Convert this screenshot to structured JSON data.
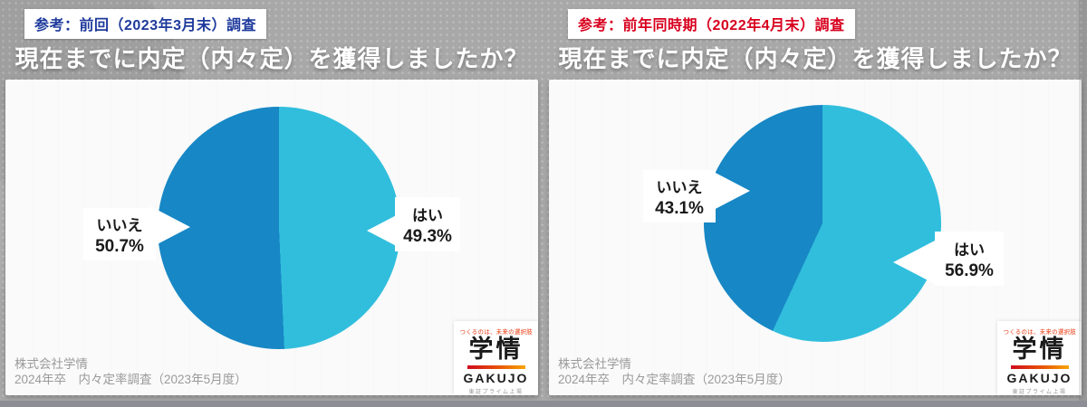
{
  "page": {
    "background": "#a8a8a8",
    "color_yes": "#31bedd",
    "color_no": "#1787c5"
  },
  "panels": [
    {
      "badge": "参考：前回（2023年3月末）調査",
      "badge_color": "#1e3a9c",
      "title": "現在までに内定（内々定）を獲得しましたか？",
      "labels": {
        "yes": "はい",
        "no": "いいえ"
      },
      "values": {
        "yes": "49.3%",
        "no": "50.7%"
      },
      "source_line1": "株式会社学情",
      "source_line2": "2024年卒　内々定率調査（2023年5月度）"
    },
    {
      "badge": "参考：前年同時期（2022年4月末）調査",
      "badge_color": "#d8001e",
      "title": "現在までに内定（内々定）を獲得しましたか？",
      "labels": {
        "yes": "はい",
        "no": "いいえ"
      },
      "values": {
        "yes": "56.9%",
        "no": "43.1%"
      },
      "source_line1": "株式会社学情",
      "source_line2": "2024年卒　内々定率調査（2023年5月度）"
    }
  ],
  "logo": {
    "slogan": "つくるのは、未来の選択肢",
    "kanji": "学情",
    "name": "GAKUJO",
    "sub": "東証プライム上場"
  },
  "chart_data": [
    {
      "type": "pie",
      "title": "現在までに内定（内々定）を獲得しましたか？（参考：前回 2023年3月末 調査）",
      "labels": [
        "はい",
        "いいえ"
      ],
      "values": [
        49.3,
        50.7
      ],
      "colors": [
        "#31bedd",
        "#1787c5"
      ],
      "start_angle": "top",
      "direction": "clockwise",
      "legend": "off"
    },
    {
      "type": "pie",
      "title": "現在までに内定（内々定）を獲得しましたか？（参考：前年同時期 2022年4月末 調査）",
      "labels": [
        "はい",
        "いいえ"
      ],
      "values": [
        56.9,
        43.1
      ],
      "colors": [
        "#31bedd",
        "#1787c5"
      ],
      "start_angle": "top",
      "direction": "clockwise",
      "legend": "off"
    }
  ]
}
